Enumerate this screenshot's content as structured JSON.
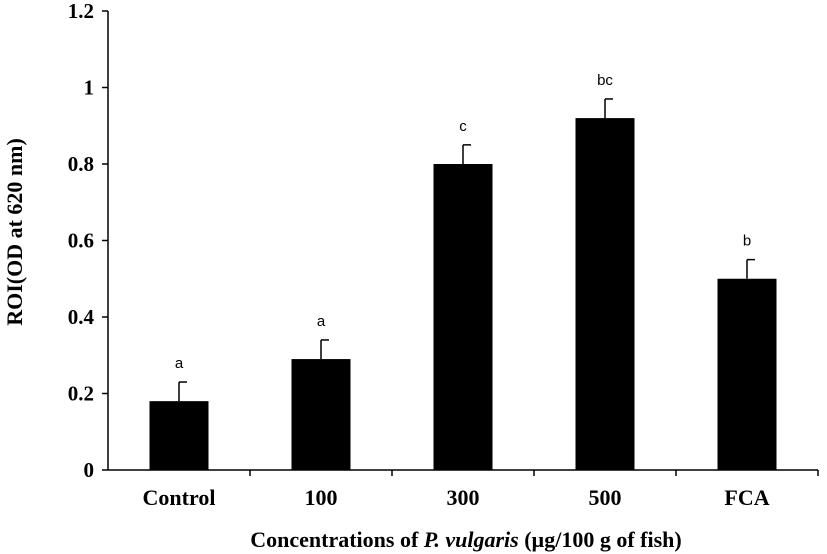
{
  "chart_data": {
    "type": "bar",
    "categories": [
      "Control",
      "100",
      "300",
      "500",
      "FCA"
    ],
    "values": [
      0.18,
      0.29,
      0.8,
      0.92,
      0.5
    ],
    "error_bars": [
      0.05,
      0.05,
      0.05,
      0.05,
      0.05
    ],
    "significance_labels": [
      "a",
      "a",
      "c",
      "bc",
      "b"
    ],
    "ylabel": "ROI(OD at 620 nm)",
    "xlabel": {
      "prefix": "Concentrations of ",
      "species": "P. vulgaris",
      "suffix": " (µg/100 g of fish)"
    },
    "ylim": [
      0,
      1.2
    ],
    "yticks": [
      "0",
      "0.2",
      "0.4",
      "0.6",
      "0.8",
      "1",
      "1.2"
    ],
    "bar_color": "#000000",
    "grid": false,
    "legend": "none"
  }
}
